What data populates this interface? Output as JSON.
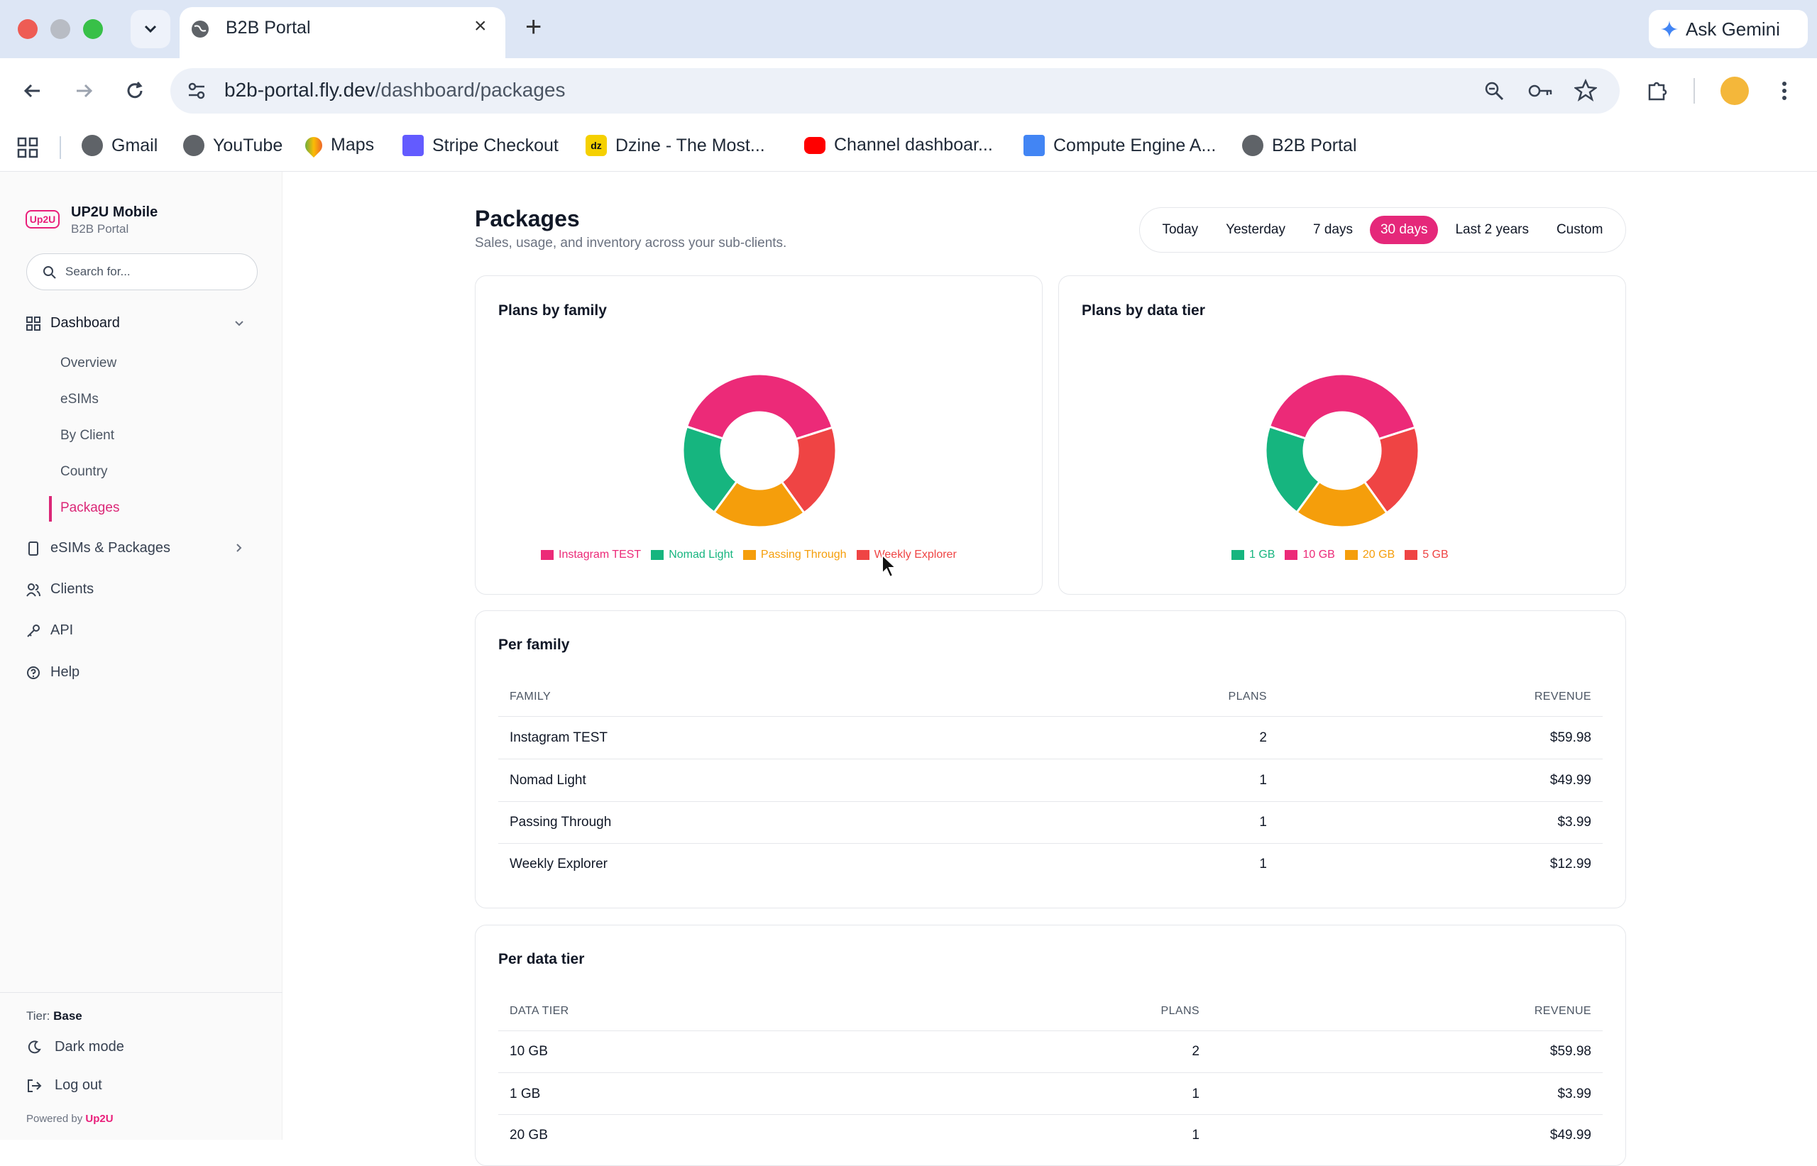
{
  "browser": {
    "tab_title": "B2B Portal",
    "url_host": "b2b-portal.fly.dev",
    "url_path": "/dashboard/packages",
    "ask_gemini": "Ask Gemini",
    "bookmarks": [
      "Gmail",
      "YouTube",
      "Maps",
      "Stripe Checkout",
      "Dzine - The Most...",
      "Channel dashboar...",
      "Compute Engine A...",
      "B2B Portal"
    ]
  },
  "sidebar": {
    "brand_logo": "Up2U",
    "brand_name": "UP2U Mobile",
    "brand_sub": "B2B Portal",
    "search_placeholder": "Search for...",
    "dashboard_label": "Dashboard",
    "sub_items": [
      "Overview",
      "eSIMs",
      "By Client",
      "Country",
      "Packages"
    ],
    "items": [
      "eSIMs & Packages",
      "Clients",
      "API",
      "Help"
    ],
    "tier_label": "Tier:",
    "tier_value": "Base",
    "dark_mode": "Dark mode",
    "logout": "Log out",
    "powered_by": "Powered by",
    "powered_brand": "Up2U"
  },
  "header": {
    "title": "Packages",
    "subtitle": "Sales, usage, and inventory across your sub-clients.",
    "ranges": [
      "Today",
      "Yesterday",
      "7 days",
      "30 days",
      "Last 2 years",
      "Custom"
    ],
    "active_range": "30 days"
  },
  "colors": {
    "pink": "#ec2a78",
    "green": "#16b57f",
    "orange": "#f59e0b",
    "red": "#ef4444"
  },
  "chart_data": [
    {
      "type": "pie",
      "title": "Plans by family",
      "categories": [
        "Instagram TEST",
        "Nomad Light",
        "Passing Through",
        "Weekly Explorer"
      ],
      "values": [
        2,
        1,
        1,
        1
      ],
      "colors": [
        "#ec2a78",
        "#16b57f",
        "#f59e0b",
        "#ef4444"
      ],
      "legend": "bottom"
    },
    {
      "type": "pie",
      "title": "Plans by data tier",
      "categories": [
        "1 GB",
        "10 GB",
        "20 GB",
        "5 GB"
      ],
      "values": [
        1,
        2,
        1,
        1
      ],
      "colors": [
        "#16b57f",
        "#ec2a78",
        "#f59e0b",
        "#ef4444"
      ],
      "legend": "bottom"
    }
  ],
  "per_family": {
    "title": "Per family",
    "headers": [
      "FAMILY",
      "PLANS",
      "REVENUE"
    ],
    "rows": [
      {
        "name": "Instagram TEST",
        "plans": "2",
        "revenue": "$59.98"
      },
      {
        "name": "Nomad Light",
        "plans": "1",
        "revenue": "$49.99"
      },
      {
        "name": "Passing Through",
        "plans": "1",
        "revenue": "$3.99"
      },
      {
        "name": "Weekly Explorer",
        "plans": "1",
        "revenue": "$12.99"
      }
    ]
  },
  "per_tier": {
    "title": "Per data tier",
    "headers": [
      "DATA TIER",
      "PLANS",
      "REVENUE"
    ],
    "rows": [
      {
        "name": "10 GB",
        "plans": "2",
        "revenue": "$59.98"
      },
      {
        "name": "1 GB",
        "plans": "1",
        "revenue": "$3.99"
      },
      {
        "name": "20 GB",
        "plans": "1",
        "revenue": "$49.99"
      }
    ]
  }
}
